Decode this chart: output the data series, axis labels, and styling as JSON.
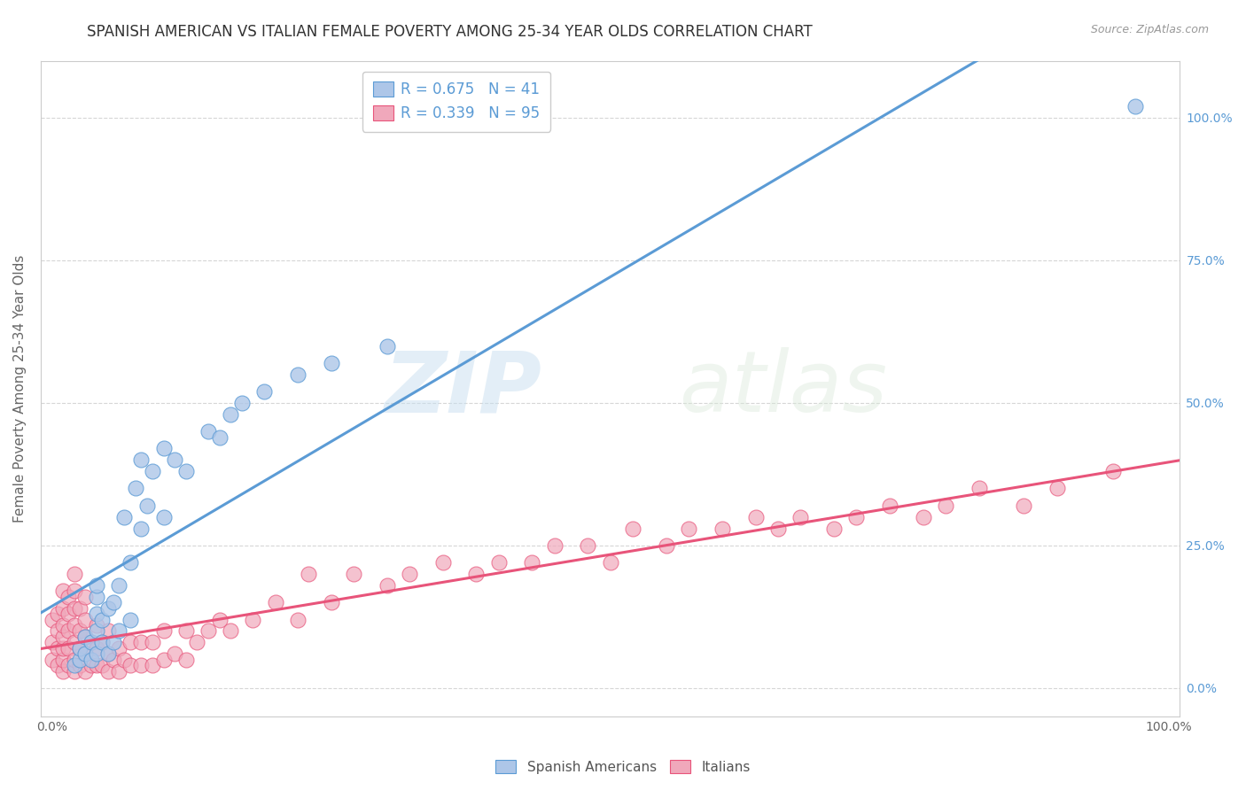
{
  "title": "SPANISH AMERICAN VS ITALIAN FEMALE POVERTY AMONG 25-34 YEAR OLDS CORRELATION CHART",
  "source": "Source: ZipAtlas.com",
  "ylabel": "Female Poverty Among 25-34 Year Olds",
  "xlabel": "",
  "xlim": [
    -0.01,
    1.01
  ],
  "ylim": [
    -0.05,
    1.1
  ],
  "ytick_labels_right": [
    "0.0%",
    "25.0%",
    "50.0%",
    "75.0%",
    "100.0%"
  ],
  "ytick_vals": [
    0.0,
    0.25,
    0.5,
    0.75,
    1.0
  ],
  "xtick_labels": [
    "0.0%",
    "100.0%"
  ],
  "xtick_vals": [
    0.0,
    1.0
  ],
  "legend1_label": "R = 0.675   N = 41",
  "legend2_label": "R = 0.339   N = 95",
  "blue_line_color": "#5b9bd5",
  "pink_line_color": "#e8547a",
  "blue_scatter_color": "#adc6e8",
  "pink_scatter_color": "#f0a8bb",
  "blue_edge_color": "#5b9bd5",
  "pink_edge_color": "#e8547a",
  "watermark_zip": "ZIP",
  "watermark_atlas": "atlas",
  "background_color": "#ffffff",
  "grid_color": "#cccccc",
  "title_fontsize": 12,
  "source_fontsize": 9,
  "axis_label_fontsize": 11,
  "tick_fontsize": 10,
  "right_tick_color": "#5b9bd5",
  "spanish_x": [
    0.02,
    0.025,
    0.025,
    0.03,
    0.03,
    0.035,
    0.035,
    0.04,
    0.04,
    0.04,
    0.04,
    0.04,
    0.045,
    0.045,
    0.05,
    0.05,
    0.055,
    0.055,
    0.06,
    0.06,
    0.065,
    0.07,
    0.07,
    0.075,
    0.08,
    0.08,
    0.085,
    0.09,
    0.1,
    0.1,
    0.11,
    0.12,
    0.14,
    0.15,
    0.16,
    0.17,
    0.19,
    0.22,
    0.25,
    0.3,
    0.97
  ],
  "spanish_y": [
    0.04,
    0.05,
    0.07,
    0.06,
    0.09,
    0.05,
    0.08,
    0.06,
    0.1,
    0.13,
    0.16,
    0.18,
    0.08,
    0.12,
    0.06,
    0.14,
    0.08,
    0.15,
    0.1,
    0.18,
    0.3,
    0.12,
    0.22,
    0.35,
    0.28,
    0.4,
    0.32,
    0.38,
    0.3,
    0.42,
    0.4,
    0.38,
    0.45,
    0.44,
    0.48,
    0.5,
    0.52,
    0.55,
    0.57,
    0.6,
    1.02
  ],
  "italian_x": [
    0.0,
    0.0,
    0.0,
    0.005,
    0.005,
    0.005,
    0.005,
    0.01,
    0.01,
    0.01,
    0.01,
    0.01,
    0.01,
    0.01,
    0.015,
    0.015,
    0.015,
    0.015,
    0.015,
    0.02,
    0.02,
    0.02,
    0.02,
    0.02,
    0.02,
    0.02,
    0.025,
    0.025,
    0.025,
    0.025,
    0.03,
    0.03,
    0.03,
    0.03,
    0.03,
    0.035,
    0.035,
    0.04,
    0.04,
    0.04,
    0.045,
    0.045,
    0.05,
    0.05,
    0.05,
    0.055,
    0.06,
    0.06,
    0.065,
    0.07,
    0.07,
    0.08,
    0.08,
    0.09,
    0.09,
    0.1,
    0.1,
    0.11,
    0.12,
    0.12,
    0.13,
    0.14,
    0.15,
    0.16,
    0.18,
    0.2,
    0.22,
    0.23,
    0.25,
    0.27,
    0.3,
    0.32,
    0.35,
    0.38,
    0.4,
    0.43,
    0.45,
    0.48,
    0.5,
    0.52,
    0.55,
    0.57,
    0.6,
    0.63,
    0.65,
    0.67,
    0.7,
    0.72,
    0.75,
    0.78,
    0.8,
    0.83,
    0.87,
    0.9,
    0.95
  ],
  "italian_y": [
    0.05,
    0.08,
    0.12,
    0.04,
    0.07,
    0.1,
    0.13,
    0.03,
    0.05,
    0.07,
    0.09,
    0.11,
    0.14,
    0.17,
    0.04,
    0.07,
    0.1,
    0.13,
    0.16,
    0.03,
    0.05,
    0.08,
    0.11,
    0.14,
    0.17,
    0.2,
    0.04,
    0.07,
    0.1,
    0.14,
    0.03,
    0.06,
    0.09,
    0.12,
    0.16,
    0.04,
    0.08,
    0.04,
    0.07,
    0.11,
    0.04,
    0.08,
    0.03,
    0.06,
    0.1,
    0.05,
    0.03,
    0.07,
    0.05,
    0.04,
    0.08,
    0.04,
    0.08,
    0.04,
    0.08,
    0.05,
    0.1,
    0.06,
    0.05,
    0.1,
    0.08,
    0.1,
    0.12,
    0.1,
    0.12,
    0.15,
    0.12,
    0.2,
    0.15,
    0.2,
    0.18,
    0.2,
    0.22,
    0.2,
    0.22,
    0.22,
    0.25,
    0.25,
    0.22,
    0.28,
    0.25,
    0.28,
    0.28,
    0.3,
    0.28,
    0.3,
    0.28,
    0.3,
    0.32,
    0.3,
    0.32,
    0.35,
    0.32,
    0.35,
    0.38
  ]
}
